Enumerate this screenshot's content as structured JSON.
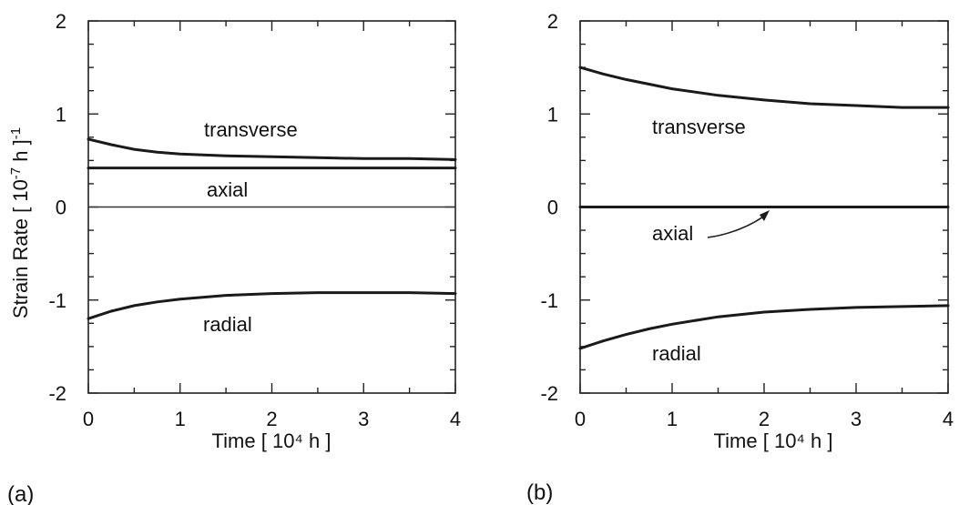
{
  "chart_data": [
    {
      "panel_label": "(a)",
      "type": "line",
      "xlabel": "Time  [ 10⁴ h ]",
      "ylabel": "Strain Rate  [ 10⁻⁷ h ]⁻¹",
      "ylabel_parts": [
        "Strain Rate  [ 10",
        "-",
        "7",
        " h ]",
        "-1"
      ],
      "xlim": [
        0,
        4
      ],
      "ylim": [
        -2,
        2
      ],
      "xticks": [
        "0",
        "1",
        "2",
        "3",
        "4"
      ],
      "yticks": [
        "2",
        "1",
        "0",
        "-1",
        "-2"
      ],
      "grid": false,
      "x": [
        0,
        0.25,
        0.5,
        0.75,
        1,
        1.5,
        2,
        2.5,
        3,
        3.5,
        4
      ],
      "series": [
        {
          "name": "transverse",
          "values": [
            0.73,
            0.67,
            0.62,
            0.59,
            0.57,
            0.55,
            0.54,
            0.53,
            0.52,
            0.52,
            0.51
          ]
        },
        {
          "name": "axial",
          "values": [
            0.42,
            0.42,
            0.42,
            0.42,
            0.42,
            0.42,
            0.42,
            0.42,
            0.42,
            0.42,
            0.42
          ]
        },
        {
          "name": "",
          "values": [
            0,
            0,
            0,
            0,
            0,
            0,
            0,
            0,
            0,
            0,
            0
          ]
        },
        {
          "name": "radial",
          "values": [
            -1.2,
            -1.12,
            -1.06,
            -1.02,
            -0.99,
            -0.95,
            -0.93,
            -0.92,
            -0.92,
            -0.92,
            -0.93
          ]
        }
      ]
    },
    {
      "panel_label": "(b)",
      "type": "line",
      "xlabel": "Time  [ 10⁴ h ]",
      "xlim": [
        0,
        4
      ],
      "ylim": [
        -2,
        2
      ],
      "xticks": [
        "0",
        "1",
        "2",
        "3",
        "4"
      ],
      "yticks": [
        "2",
        "1",
        "0",
        "-1",
        "-2"
      ],
      "grid": false,
      "x": [
        0,
        0.25,
        0.5,
        0.75,
        1,
        1.5,
        2,
        2.5,
        3,
        3.5,
        4
      ],
      "series": [
        {
          "name": "transverse",
          "values": [
            1.5,
            1.43,
            1.37,
            1.32,
            1.27,
            1.2,
            1.15,
            1.11,
            1.09,
            1.07,
            1.07
          ]
        },
        {
          "name": "axial",
          "values": [
            0,
            0,
            0,
            0,
            0,
            0,
            0,
            0,
            0,
            0,
            0
          ]
        },
        {
          "name": "radial",
          "values": [
            -1.52,
            -1.44,
            -1.37,
            -1.31,
            -1.26,
            -1.18,
            -1.13,
            -1.1,
            -1.08,
            -1.07,
            -1.06
          ]
        }
      ]
    }
  ]
}
